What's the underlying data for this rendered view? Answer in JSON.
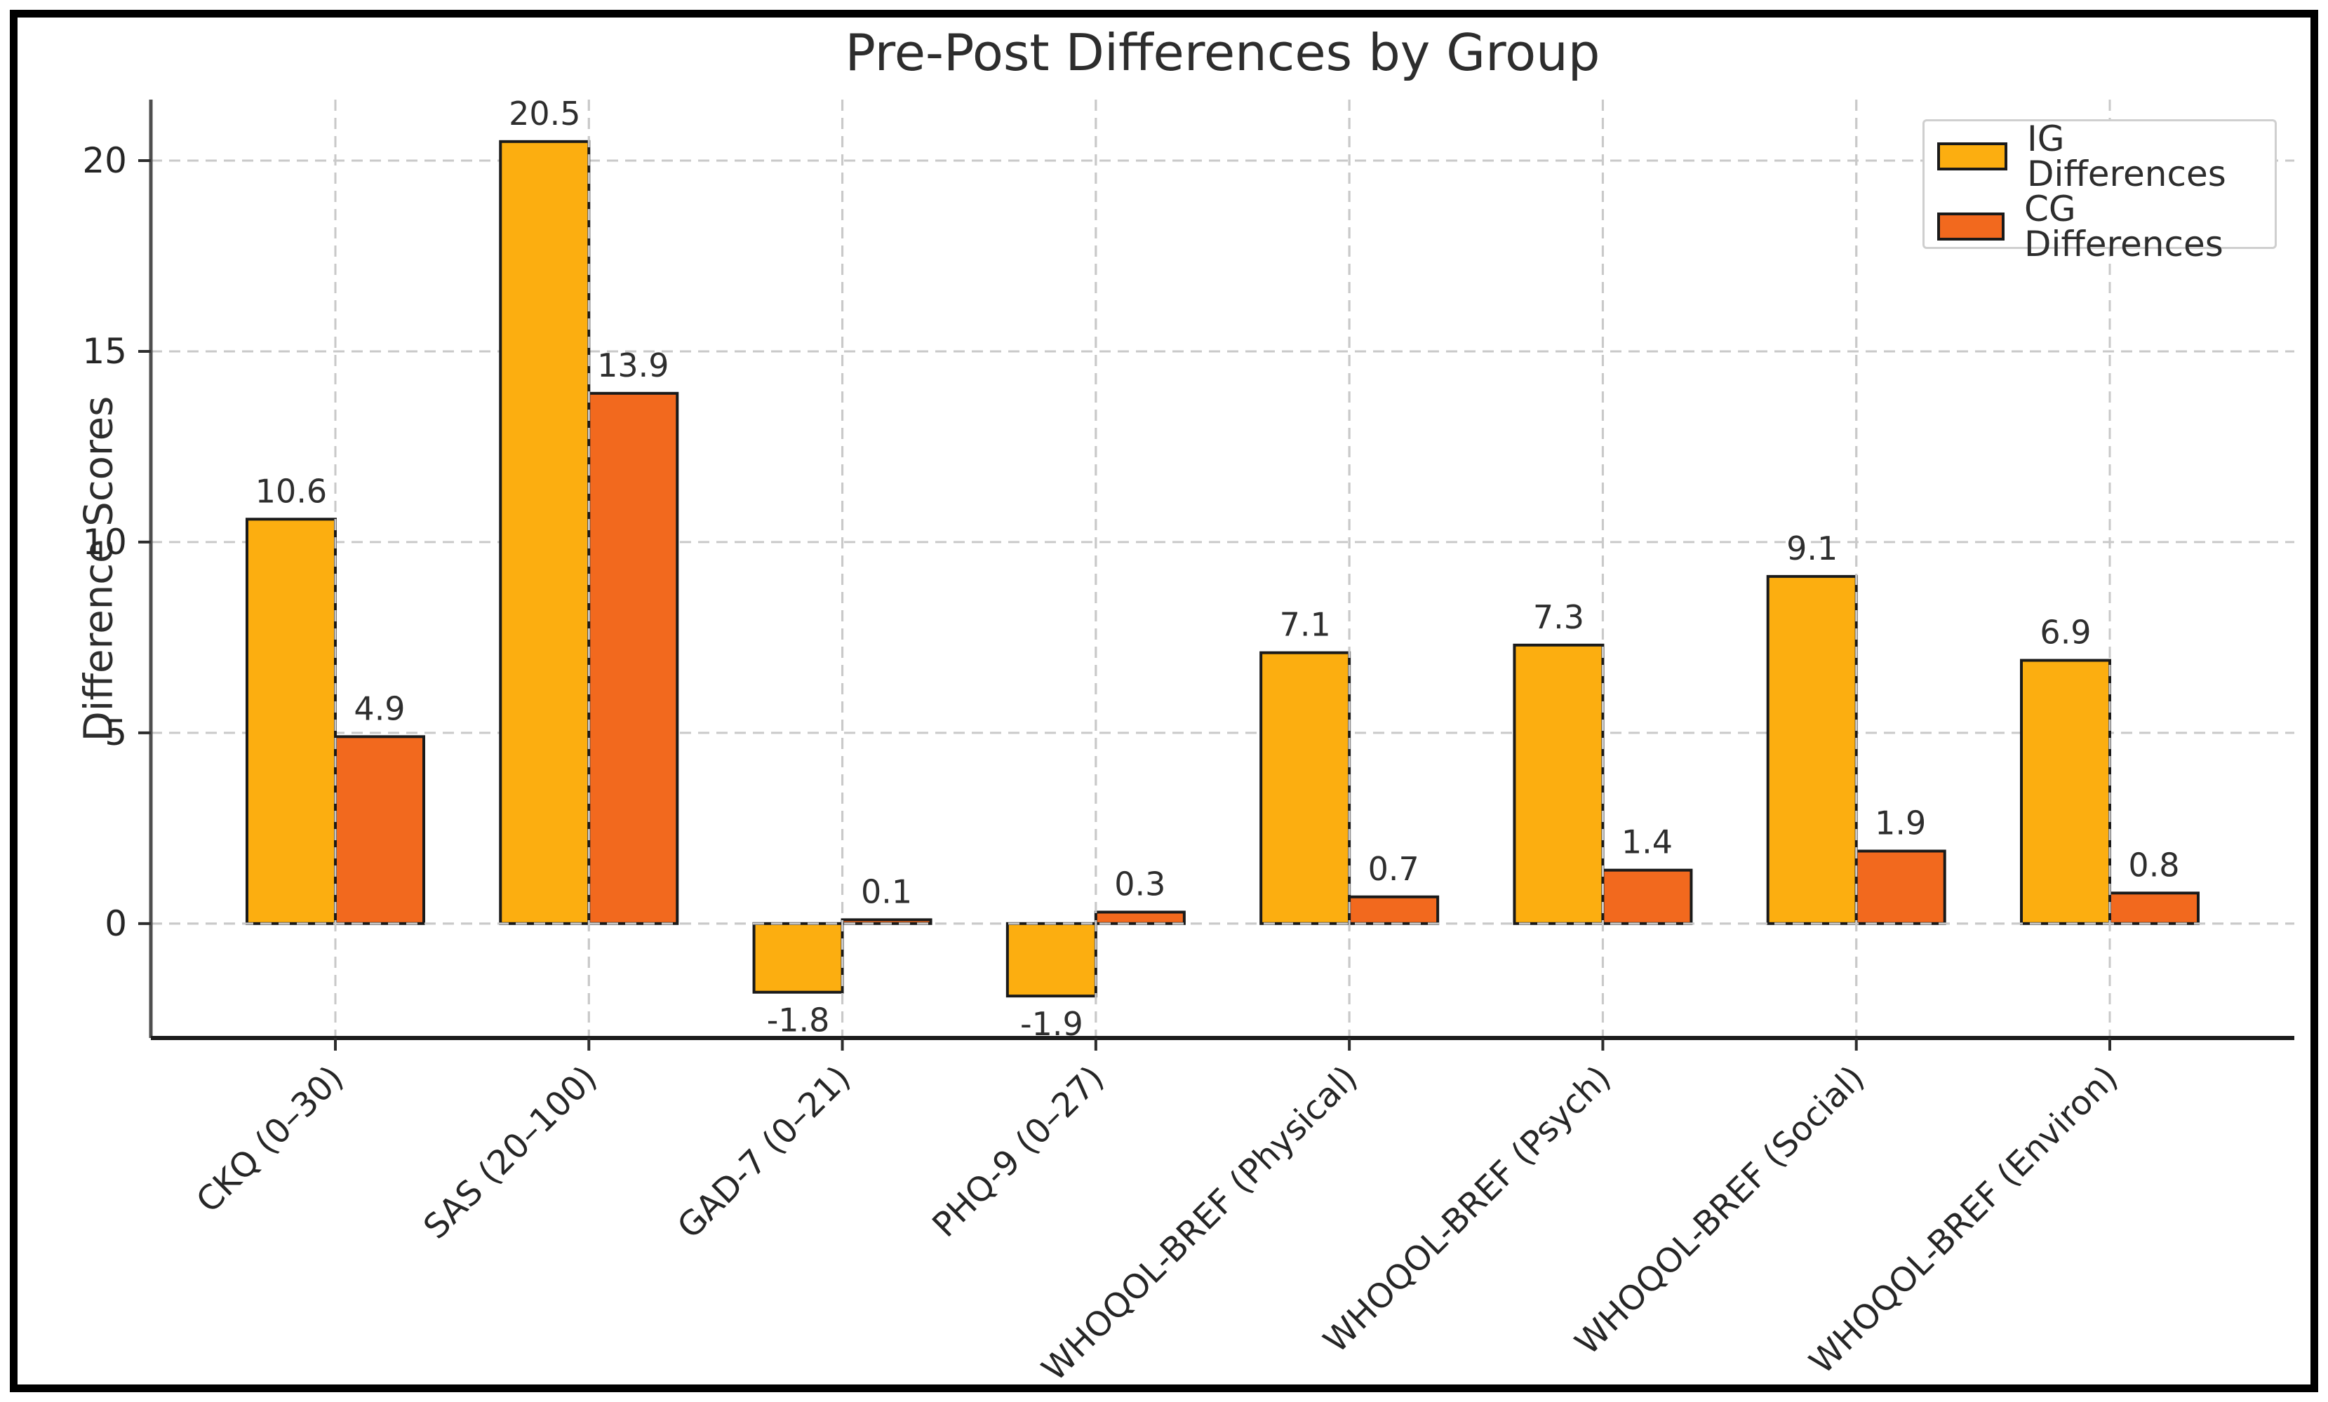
{
  "chart_data": {
    "type": "bar",
    "title": "Pre-Post Differences by Group",
    "ylabel": "Difference Scores",
    "xlabel": "",
    "categories": [
      "CKQ (0–30)",
      "SAS (20–100)",
      "GAD-7 (0–21)",
      "PHQ-9 (0–27)",
      "WHOQOL-BREF (Physical)",
      "WHOQOL-BREF (Psych)",
      "WHOQOL-BREF (Social)",
      "WHOQOL-BREF (Environ)"
    ],
    "series": [
      {
        "name": "IG Differences",
        "color": "#FCAE10",
        "values": [
          10.6,
          20.5,
          -1.8,
          -1.9,
          7.1,
          7.3,
          9.1,
          6.9
        ]
      },
      {
        "name": "CG Differences",
        "color": "#F2691E",
        "values": [
          4.9,
          13.9,
          0.1,
          0.3,
          0.7,
          1.4,
          1.9,
          0.8
        ]
      }
    ],
    "value_labels": {
      "IG Differences": [
        "10.6",
        "20.5",
        "-1.8",
        "-1.9",
        "7.1",
        "7.3",
        "9.1",
        "6.9"
      ],
      "CG Differences": [
        "4.9",
        "13.9",
        "0.1",
        "0.3",
        "0.7",
        "1.4",
        "1.9",
        "0.8"
      ]
    },
    "bar_edge_color": "#1a1a1a",
    "yticks": [
      0,
      5,
      10,
      15,
      20
    ],
    "ytick_labels": [
      "0",
      "5",
      "10",
      "15",
      "20"
    ],
    "ylim": [
      -3.0,
      21.6
    ],
    "grid": true,
    "grid_color": "#c9c9c9",
    "legend_position": "upper right"
  }
}
